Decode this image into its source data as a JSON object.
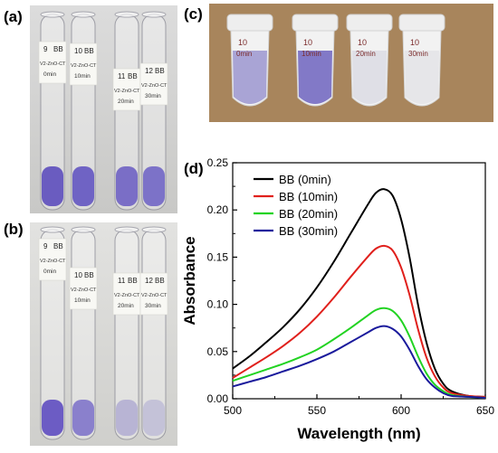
{
  "panels": {
    "a": "(a)",
    "b": "(b)",
    "c": "(c)",
    "d": "(d)"
  },
  "photos": {
    "a": {
      "tube_labels": [
        {
          "num": "9",
          "code": "BB",
          "line1": "V2-ZnO-CT",
          "line2": "0min"
        },
        {
          "num": "10",
          "code": "BB",
          "line1": "V2-ZnO-CT",
          "line2": "10min"
        },
        {
          "num": "11",
          "code": "BB",
          "line1": "V2-ZnO-CT",
          "line2": "20min"
        },
        {
          "num": "12",
          "code": "BB",
          "line1": "V2-ZnO-CT",
          "line2": "30min"
        }
      ],
      "liquid_colors": [
        "#6a5cc0",
        "#6f63c4",
        "#7a6ec6",
        "#7c72c8"
      ]
    },
    "b": {
      "tube_labels": [
        {
          "num": "9",
          "code": "BB",
          "line1": "V2-ZnO-CT",
          "line2": "0min"
        },
        {
          "num": "10",
          "code": "BB",
          "line1": "V2-ZnO-CT",
          "line2": "10min"
        },
        {
          "num": "11",
          "code": "BB",
          "line1": "V2-ZnO-CT",
          "line2": "20min"
        },
        {
          "num": "12",
          "code": "BB",
          "line1": "V2-ZnO-CT",
          "line2": "30min"
        }
      ],
      "liquid_colors": [
        "#6c5cc4",
        "#8a80cc",
        "#b8b4d4",
        "#c4c2d8"
      ]
    },
    "c": {
      "vial_labels": [
        {
          "num": "10",
          "time": "0min"
        },
        {
          "num": "10",
          "time": "10min"
        },
        {
          "num": "10",
          "time": "20min"
        },
        {
          "num": "10",
          "time": "30min"
        }
      ],
      "liquid_colors": [
        "#9c96d0",
        "#6e64c0",
        "#dcdce4",
        "#e4e4e8"
      ],
      "background_color": "#a8855c"
    }
  },
  "chart_data": {
    "type": "line",
    "xlabel": "Wavelength (nm)",
    "ylabel": "Absorbance",
    "xlim": [
      500,
      650
    ],
    "ylim": [
      0,
      0.25
    ],
    "xticks": [
      500,
      550,
      600,
      650
    ],
    "yticks": [
      0.0,
      0.05,
      0.1,
      0.15,
      0.2,
      0.25
    ],
    "xtick_labels": [
      "500",
      "550",
      "600",
      "650"
    ],
    "ytick_labels": [
      "0.00",
      "0.05",
      "0.10",
      "0.15",
      "0.20",
      "0.25"
    ],
    "legend_position": "top-left",
    "grid": false,
    "x": [
      500,
      510,
      520,
      530,
      540,
      550,
      560,
      570,
      580,
      585,
      590,
      595,
      600,
      605,
      610,
      615,
      620,
      625,
      630,
      640,
      650
    ],
    "series": [
      {
        "name": "BB (0min)",
        "color": "#000000",
        "values": [
          0.032,
          0.045,
          0.06,
          0.076,
          0.095,
          0.118,
          0.145,
          0.175,
          0.205,
          0.218,
          0.222,
          0.215,
          0.19,
          0.15,
          0.1,
          0.06,
          0.032,
          0.016,
          0.008,
          0.003,
          0.002
        ]
      },
      {
        "name": "BB (10min)",
        "color": "#e0201c",
        "values": [
          0.022,
          0.033,
          0.044,
          0.056,
          0.07,
          0.087,
          0.107,
          0.129,
          0.15,
          0.159,
          0.162,
          0.157,
          0.139,
          0.11,
          0.074,
          0.044,
          0.024,
          0.012,
          0.006,
          0.003,
          0.002
        ]
      },
      {
        "name": "BB (20min)",
        "color": "#22d322",
        "values": [
          0.019,
          0.025,
          0.031,
          0.037,
          0.044,
          0.052,
          0.063,
          0.075,
          0.088,
          0.094,
          0.096,
          0.093,
          0.083,
          0.066,
          0.045,
          0.027,
          0.015,
          0.008,
          0.004,
          0.002,
          0.001
        ]
      },
      {
        "name": "BB (30min)",
        "color": "#1a1a9c",
        "values": [
          0.013,
          0.018,
          0.023,
          0.029,
          0.035,
          0.042,
          0.05,
          0.06,
          0.07,
          0.075,
          0.077,
          0.074,
          0.066,
          0.052,
          0.035,
          0.021,
          0.012,
          0.006,
          0.003,
          0.002,
          0.001
        ]
      }
    ]
  }
}
